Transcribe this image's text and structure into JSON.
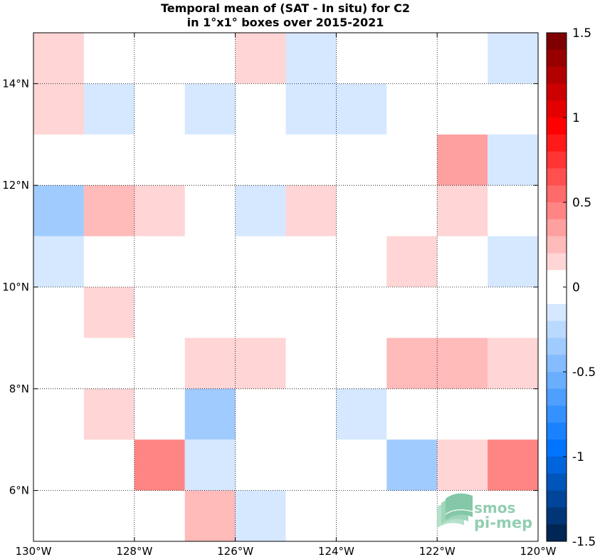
{
  "chart_data": {
    "type": "heatmap",
    "title": [
      "Temporal mean of (SAT - In situ) for C2",
      "in 1°x1° boxes over 2015-2021"
    ],
    "xlim": [
      -130,
      -120
    ],
    "ylim": [
      5,
      15
    ],
    "x_ticks": [
      -130,
      -128,
      -126,
      -124,
      -122,
      -120
    ],
    "x_tick_labels": [
      "130°W",
      "128°W",
      "126°W",
      "124°W",
      "122°W",
      "120°W"
    ],
    "y_ticks": [
      6,
      8,
      10,
      12,
      14
    ],
    "y_tick_labels": [
      "6°N",
      "8°N",
      "10°N",
      "12°N",
      "14°N"
    ],
    "grid": true,
    "colorbar": {
      "min": -1.5,
      "max": 1.5,
      "levels": 30,
      "ticks": [
        1.5,
        1,
        0.5,
        0,
        -0.5,
        -1,
        -1.5
      ],
      "tick_labels": [
        "1.5",
        "1",
        "0.5",
        "0",
        "-0.5",
        "-1",
        "-1.5"
      ],
      "colors_top_to_bottom": [
        "#7f0000",
        "#980000",
        "#b20000",
        "#cc0000",
        "#e50000",
        "#ff0000",
        "#ff1a1a",
        "#ff3535",
        "#ff4f4f",
        "#ff6a6a",
        "#ff8585",
        "#ffa0a0",
        "#ffbaba",
        "#ffd5d5",
        "#ffffff",
        "#ffffff",
        "#d5e8ff",
        "#bad9ff",
        "#a0cbff",
        "#85bcff",
        "#6aaeff",
        "#4f9fff",
        "#3591ff",
        "#1a82ff",
        "#0074ff",
        "#0064dd",
        "#0055bb",
        "#004599",
        "#003677",
        "#002655"
      ]
    },
    "cells": [
      {
        "lon": -130,
        "lat": 14,
        "value": 0.1
      },
      {
        "lon": -126,
        "lat": 14,
        "value": 0.1
      },
      {
        "lon": -125,
        "lat": 14,
        "value": -0.1
      },
      {
        "lon": -121,
        "lat": 14,
        "value": -0.1
      },
      {
        "lon": -130,
        "lat": 13,
        "value": 0.1
      },
      {
        "lon": -129,
        "lat": 13,
        "value": -0.1
      },
      {
        "lon": -127,
        "lat": 13,
        "value": -0.1
      },
      {
        "lon": -125,
        "lat": 13,
        "value": -0.1
      },
      {
        "lon": -124,
        "lat": 13,
        "value": -0.1
      },
      {
        "lon": -122,
        "lat": 12,
        "value": 0.3
      },
      {
        "lon": -121,
        "lat": 12,
        "value": -0.1
      },
      {
        "lon": -130,
        "lat": 11,
        "value": -0.3
      },
      {
        "lon": -129,
        "lat": 11,
        "value": 0.25
      },
      {
        "lon": -128,
        "lat": 11,
        "value": 0.1
      },
      {
        "lon": -126,
        "lat": 11,
        "value": -0.1
      },
      {
        "lon": -125,
        "lat": 11,
        "value": 0.1
      },
      {
        "lon": -122,
        "lat": 11,
        "value": 0.1
      },
      {
        "lon": -130,
        "lat": 10,
        "value": -0.1
      },
      {
        "lon": -123,
        "lat": 10,
        "value": 0.1
      },
      {
        "lon": -121,
        "lat": 10,
        "value": -0.2
      },
      {
        "lon": -129,
        "lat": 9,
        "value": 0.1
      },
      {
        "lon": -127,
        "lat": 8,
        "value": 0.1
      },
      {
        "lon": -126,
        "lat": 8,
        "value": 0.1
      },
      {
        "lon": -123,
        "lat": 8,
        "value": 0.2
      },
      {
        "lon": -122,
        "lat": 8,
        "value": 0.2
      },
      {
        "lon": -121,
        "lat": 8,
        "value": 0.1
      },
      {
        "lon": -129,
        "lat": 7,
        "value": 0.1
      },
      {
        "lon": -127,
        "lat": 7,
        "value": -0.3
      },
      {
        "lon": -124,
        "lat": 7,
        "value": -0.1
      },
      {
        "lon": -128,
        "lat": 6,
        "value": 0.4
      },
      {
        "lon": -127,
        "lat": 6,
        "value": -0.2
      },
      {
        "lon": -123,
        "lat": 6,
        "value": -0.3
      },
      {
        "lon": -122,
        "lat": 6,
        "value": 0.1
      },
      {
        "lon": -121,
        "lat": 6,
        "value": 0.4
      },
      {
        "lon": -127,
        "lat": 5,
        "value": 0.2
      },
      {
        "lon": -126,
        "lat": 5,
        "value": -0.2
      }
    ]
  },
  "logo": {
    "line1": "smos",
    "line2": "pi-mep",
    "color": "#7fc6a4"
  }
}
